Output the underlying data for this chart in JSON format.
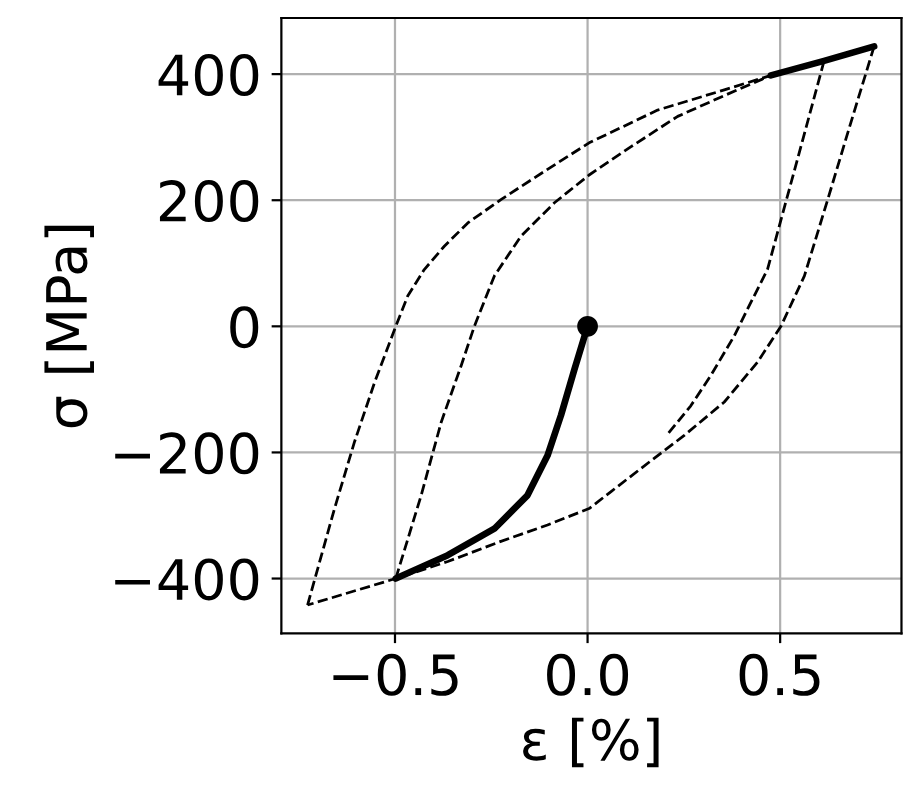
{
  "chart_data": {
    "type": "line",
    "xlabel": "ε [%]",
    "ylabel": "σ [MPa]",
    "xlim": [
      -0.795,
      0.815
    ],
    "ylim": [
      -487,
      489
    ],
    "xticks": [
      {
        "value": -0.5,
        "label": "−0.5"
      },
      {
        "value": 0,
        "label": "0.0"
      },
      0.5
    ],
    "yticks": [
      {
        "value": -400,
        "label": "−400"
      },
      {
        "value": -200,
        "label": "−200"
      },
      0,
      200,
      400
    ],
    "grid": true,
    "series": [
      {
        "color": "#000000",
        "line_style": "dashed",
        "x": [
          -0.727,
          -0.657,
          -0.605,
          -0.553,
          -0.498,
          -0.467,
          -0.424,
          -0.372,
          -0.311,
          -0.225,
          -0.104,
          0.004,
          0.182,
          0.355,
          0.476
        ],
        "values": [
          -442,
          -289,
          -183,
          -89,
          0,
          48,
          90,
          127,
          164,
          201,
          249,
          291,
          343,
          375,
          398
        ]
      },
      {
        "color": "#000000",
        "line_style": "dashed",
        "x": [
          -0.498,
          -0.432,
          -0.38,
          -0.328,
          -0.294,
          -0.242,
          -0.173,
          -0.086,
          0.004,
          0.113,
          0.234,
          0.355,
          0.476
        ],
        "values": [
          -400,
          -268,
          -152,
          -62,
          0,
          80,
          143,
          196,
          240,
          285,
          333,
          366,
          398
        ]
      },
      {
        "color": "#000000",
        "line_style": "dashed",
        "x": [
          0.744,
          0.683,
          0.623,
          0.563,
          0.502,
          0.441,
          0.355,
          0.251,
          0.165,
          0.061,
          0.004,
          -0.104,
          -0.225,
          -0.363,
          -0.498,
          -0.727
        ],
        "values": [
          444,
          322,
          200,
          80,
          0,
          -57,
          -120,
          -173,
          -213,
          -262,
          -289,
          -315,
          -341,
          -373,
          -400,
          -442
        ]
      },
      {
        "color": "#000000",
        "line_style": "dashed",
        "x": [
          0.614,
          0.565,
          0.516,
          0.467,
          0.415,
          0.381,
          0.32,
          0.268,
          0.208
        ],
        "values": [
          421,
          310,
          200,
          90,
          27,
          -15,
          -78,
          -126,
          -171
        ]
      },
      {
        "color": "#000000",
        "line_style": "solid",
        "x": [
          0,
          -0.034,
          -0.069,
          -0.104,
          -0.156,
          -0.242,
          -0.363,
          -0.498
        ],
        "values": [
          0,
          -68,
          -141,
          -205,
          -268,
          -321,
          -363,
          -400
        ]
      },
      {
        "color": "#000000",
        "line_style": "solid",
        "x": [
          0.476,
          0.614,
          0.744
        ],
        "values": [
          398,
          421,
          444
        ]
      },
      {
        "type": "scatter",
        "marker": "circle",
        "color": "#000000",
        "x": [
          0
        ],
        "values": [
          0
        ]
      }
    ]
  }
}
